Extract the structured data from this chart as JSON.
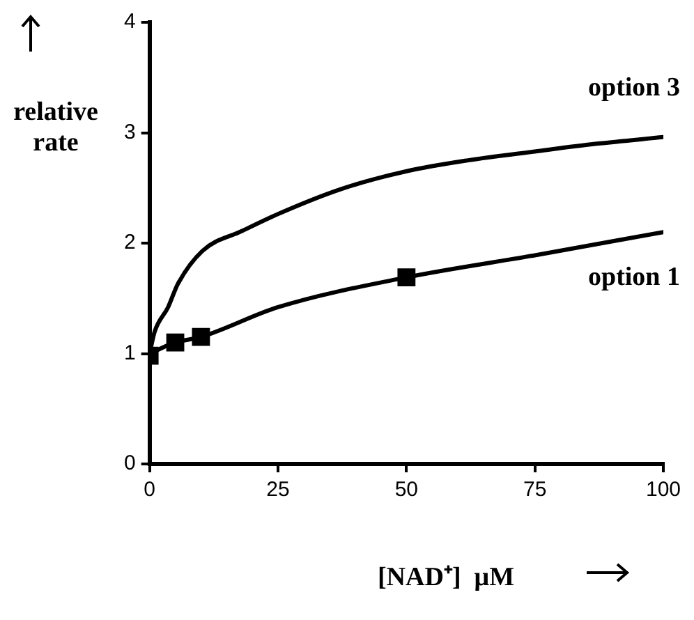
{
  "chart_data": {
    "type": "line",
    "xlabel": "[NAD⁺]  μM",
    "ylabel": "relative rate",
    "xlim": [
      0,
      100
    ],
    "xticks": [
      0,
      25,
      50,
      75,
      100
    ],
    "ylim": [
      0,
      4
    ],
    "yticks": [
      0,
      1,
      2,
      3,
      4
    ],
    "grid": false,
    "legend": false,
    "line_style": "solid",
    "series": [
      {
        "name": "option 3",
        "color": "#000000",
        "marker": "none",
        "x": [
          0,
          1,
          3.6,
          5.5,
          10.3,
          18,
          25.3,
          37.3,
          49.9,
          62,
          75,
          87,
          100
        ],
        "values": [
          1,
          1.2,
          1.42,
          1.63,
          1.93,
          2.11,
          2.27,
          2.49,
          2.65,
          2.75,
          2.83,
          2.9,
          2.96
        ]
      },
      {
        "name": "option 1",
        "color": "#000000",
        "marker": "none",
        "x": [
          0,
          5,
          10,
          25,
          50,
          75,
          100
        ],
        "values": [
          1,
          1.1,
          1.15,
          1.42,
          1.69,
          1.89,
          2.1
        ]
      },
      {
        "type": "scatter",
        "color": "#000000",
        "marker": "square",
        "x": [
          0,
          5,
          10,
          50
        ],
        "values": [
          0.98,
          1.1,
          1.15,
          1.69
        ]
      }
    ]
  }
}
